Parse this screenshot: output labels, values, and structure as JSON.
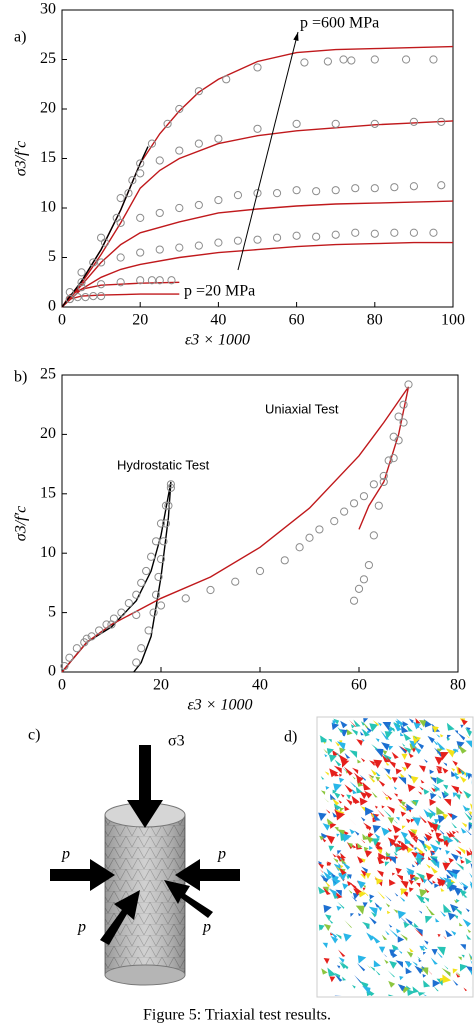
{
  "chart_data": [
    {
      "type": "line",
      "panel_label": "a)",
      "xlabel": "ε3 × 1000",
      "ylabel": "σ3/f′c",
      "xlim": [
        0,
        100
      ],
      "ylim": [
        0,
        30
      ],
      "xticks": [
        0,
        20,
        40,
        60,
        80,
        100
      ],
      "yticks": [
        0,
        5,
        10,
        15,
        20,
        25,
        30
      ],
      "grid": false,
      "annotations": [
        {
          "text": "p =600 MPa",
          "color": "#000000"
        },
        {
          "text": "p =20 MPa",
          "color": "#000000"
        }
      ],
      "series": [
        {
          "mode": "line",
          "color": "#c0191c",
          "x": [
            0,
            5,
            10,
            15,
            20,
            25,
            30,
            35,
            40,
            50,
            60,
            70,
            80,
            90,
            100
          ],
          "values": [
            0,
            2.6,
            5.8,
            9.8,
            14.5,
            17.5,
            19.8,
            21.7,
            23,
            24.8,
            25.7,
            26,
            26.1,
            26.2,
            26.3
          ]
        },
        {
          "mode": "line",
          "color": "#c0191c",
          "x": [
            0,
            5,
            10,
            15,
            20,
            25,
            30,
            40,
            50,
            60,
            70,
            80,
            90,
            100
          ],
          "values": [
            0,
            2.4,
            5.3,
            8.5,
            12,
            13.8,
            15,
            16.5,
            17.3,
            17.8,
            18.1,
            18.4,
            18.6,
            18.8
          ]
        },
        {
          "mode": "line",
          "color": "#c0191c",
          "x": [
            0,
            5,
            10,
            15,
            20,
            30,
            40,
            50,
            60,
            70,
            80,
            90,
            100
          ],
          "values": [
            0,
            2.2,
            4.5,
            6.3,
            7.5,
            8.6,
            9.5,
            9.9,
            10.2,
            10.4,
            10.5,
            10.6,
            10.7
          ]
        },
        {
          "mode": "line",
          "color": "#c0191c",
          "x": [
            0,
            5,
            10,
            15,
            20,
            30,
            40,
            50,
            60,
            70,
            80,
            90,
            100
          ],
          "values": [
            0,
            1.8,
            3,
            3.8,
            4.3,
            5,
            5.5,
            5.8,
            6.1,
            6.3,
            6.4,
            6.5,
            6.5
          ]
        },
        {
          "mode": "line",
          "color": "#c0191c",
          "x": [
            0,
            2,
            5,
            10,
            20,
            30
          ],
          "values": [
            0,
            1.2,
            1.8,
            2.2,
            2.4,
            2.5
          ]
        },
        {
          "mode": "line",
          "color": "#c0191c",
          "x": [
            0,
            2,
            5,
            10,
            20,
            30
          ],
          "values": [
            0,
            0.8,
            1.1,
            1.2,
            1.3,
            1.3
          ]
        },
        {
          "mode": "line",
          "color": "#000000",
          "x": [
            0,
            5,
            10,
            15,
            20,
            22
          ],
          "values": [
            0,
            2.6,
            5.8,
            9.8,
            14.5,
            16.2
          ]
        },
        {
          "mode": "marker",
          "color": "#8c8c8c",
          "x": [
            2,
            5,
            8,
            11,
            14,
            17,
            20,
            23,
            27,
            30,
            35,
            42,
            50,
            62,
            68,
            72,
            74,
            80,
            88,
            95
          ],
          "values": [
            0.8,
            2.5,
            4.5,
            6.5,
            9,
            11.5,
            14.5,
            16.5,
            18.5,
            20,
            21.8,
            23,
            24.2,
            24.7,
            24.8,
            25,
            24.9,
            25,
            25,
            25
          ]
        },
        {
          "mode": "marker",
          "color": "#8c8c8c",
          "x": [
            15,
            18,
            20,
            25,
            30,
            35,
            40,
            50,
            60,
            70,
            80,
            90,
            97
          ],
          "values": [
            11,
            12.8,
            13.5,
            14.8,
            15.8,
            16.5,
            17,
            18,
            18.5,
            18.5,
            18.5,
            18.7,
            18.7
          ]
        },
        {
          "mode": "marker",
          "color": "#8c8c8c",
          "x": [
            10,
            15,
            20,
            25,
            30,
            35,
            40,
            45,
            50,
            55,
            60,
            65,
            70,
            75,
            80,
            85,
            90,
            97
          ],
          "values": [
            7,
            8.5,
            9,
            9.5,
            10,
            10.3,
            10.8,
            11.3,
            11.5,
            11.5,
            11.8,
            11.7,
            11.8,
            12,
            12,
            12.1,
            12.2,
            12.3
          ]
        },
        {
          "mode": "marker",
          "color": "#8c8c8c",
          "x": [
            5,
            10,
            15,
            20,
            25,
            30,
            35,
            40,
            45,
            50,
            55,
            60,
            65,
            70,
            75,
            80,
            85,
            90,
            95
          ],
          "values": [
            3.5,
            4.5,
            5,
            5.5,
            5.8,
            6,
            6.2,
            6.5,
            6.7,
            6.8,
            7,
            7.2,
            7.1,
            7.3,
            7.5,
            7.4,
            7.5,
            7.5,
            7.5
          ]
        },
        {
          "mode": "marker",
          "color": "#8c8c8c",
          "x": [
            2,
            5,
            10,
            15,
            20,
            23,
            25,
            28
          ],
          "values": [
            1.5,
            2,
            2.3,
            2.5,
            2.7,
            2.7,
            2.7,
            2.7
          ]
        },
        {
          "mode": "marker",
          "color": "#8c8c8c",
          "x": [
            2,
            4,
            6,
            8,
            10
          ],
          "values": [
            0.8,
            1,
            1,
            1.1,
            1.1
          ]
        }
      ]
    },
    {
      "type": "line",
      "panel_label": "b)",
      "xlabel": "ε3 × 1000",
      "ylabel": "σ3/f′c",
      "xlim": [
        0,
        80
      ],
      "ylim": [
        0,
        25
      ],
      "xticks": [
        0,
        20,
        40,
        60,
        80
      ],
      "yticks": [
        0,
        5,
        10,
        15,
        20,
        25
      ],
      "grid": false,
      "annotations": [
        {
          "text": "Hydrostatic Test",
          "color": "#000000"
        },
        {
          "text": "Uniaxial Test",
          "color": "#c0191c"
        }
      ],
      "series": [
        {
          "mode": "line",
          "color": "#000000",
          "x": [
            0,
            2,
            5,
            10,
            15,
            18,
            20,
            22,
            21.5,
            20,
            18,
            16,
            14.5
          ],
          "values": [
            0,
            1,
            2.5,
            3.8,
            6,
            8.5,
            11.5,
            16,
            13,
            8,
            3,
            0.8,
            0
          ]
        },
        {
          "mode": "line",
          "color": "#c0191c",
          "x": [
            0,
            5,
            10,
            20,
            30,
            40,
            50,
            60,
            65,
            70,
            68,
            65,
            62,
            60
          ],
          "values": [
            0,
            2.5,
            4,
            6.2,
            8,
            10.5,
            13.8,
            18.2,
            21,
            24,
            20,
            16,
            14,
            12
          ]
        },
        {
          "mode": "marker",
          "color": "#8c8c8c",
          "x": [
            0.5,
            1.5,
            3,
            4.5,
            6,
            7.5,
            9,
            10.5,
            12,
            13.5,
            15,
            16,
            17,
            18,
            19,
            20,
            21,
            22,
            22,
            21.5,
            21,
            20.5,
            20,
            19.5,
            19,
            18.5,
            17.5,
            16,
            15
          ],
          "values": [
            0.5,
            1.2,
            2,
            2.5,
            3,
            3.5,
            4,
            4.5,
            5,
            5.8,
            6.5,
            7.5,
            8.5,
            9.7,
            11,
            12.5,
            14,
            15.5,
            15.8,
            14,
            12.5,
            11,
            9.5,
            8,
            6.5,
            5,
            3.5,
            2,
            0.8
          ]
        },
        {
          "mode": "marker",
          "color": "#8c8c8c",
          "x": [
            5,
            10,
            15,
            20,
            25,
            30,
            35,
            40,
            45,
            48,
            50,
            52,
            55,
            57,
            59,
            61,
            63,
            65,
            67,
            68,
            69,
            70,
            69,
            68,
            67,
            66,
            65,
            64,
            63,
            62,
            61,
            60,
            59
          ],
          "values": [
            2.8,
            4,
            4.8,
            5.6,
            6.2,
            6.9,
            7.6,
            8.5,
            9.4,
            10.5,
            11.3,
            12,
            12.7,
            13.5,
            14.2,
            14.8,
            15.8,
            16.5,
            18,
            19.5,
            21,
            24.2,
            22.5,
            21.5,
            19.8,
            17.8,
            16,
            14,
            11.5,
            9,
            7.8,
            7,
            6
          ]
        }
      ]
    }
  ],
  "panel_c": {
    "label": "c)",
    "stress": "σ3",
    "pressure_labels": [
      "p",
      "p",
      "p",
      "p"
    ]
  },
  "panel_d": {
    "label": "d)"
  },
  "caption": "Figure 5: Triaxial test results."
}
